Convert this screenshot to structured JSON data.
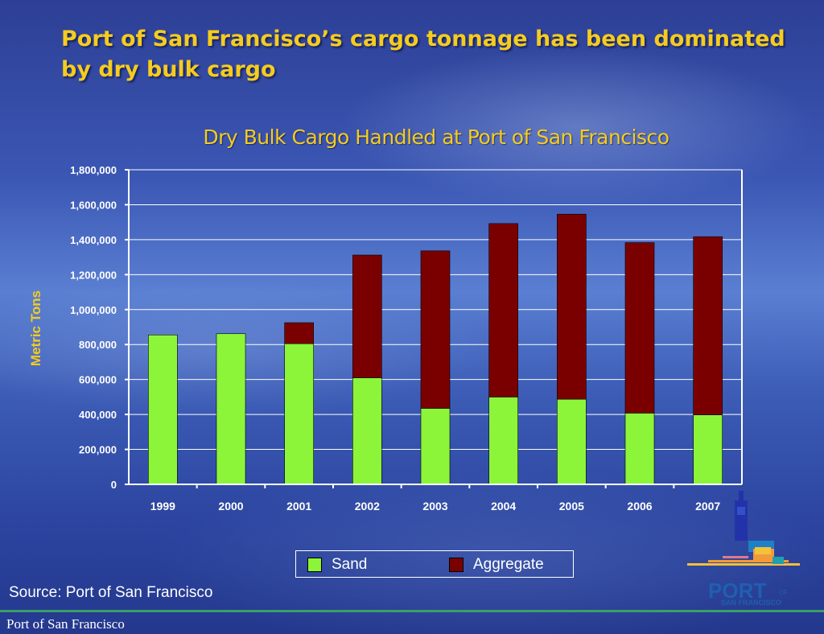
{
  "slide": {
    "title": "Port of San Francisco’s cargo tonnage has been dominated by dry bulk cargo",
    "source": "Source: Port of San Francisco",
    "footer": "Port of San Francisco"
  },
  "logo": {
    "text_main": "PORT",
    "text_of": "OF",
    "text_sub": "SAN FRANCISCO"
  },
  "colors": {
    "sand": "#8cf53a",
    "aggregate": "#7a0000",
    "title": "#f5cc1e",
    "axis_label": "#f5cc1e"
  },
  "chart_data": {
    "type": "bar",
    "stacked": true,
    "title": "Dry Bulk Cargo Handled at Port of San Francisco",
    "ylabel": "Metric Tons",
    "xlabel": "",
    "categories": [
      "1999",
      "2000",
      "2001",
      "2002",
      "2003",
      "2004",
      "2005",
      "2006",
      "2007"
    ],
    "series": [
      {
        "name": "Sand",
        "values": [
          855000,
          862000,
          805000,
          610000,
          435000,
          500000,
          487000,
          408000,
          398000
        ]
      },
      {
        "name": "Aggregate",
        "values": [
          0,
          0,
          120000,
          702000,
          901000,
          992000,
          1059000,
          975000,
          1019000
        ]
      }
    ],
    "ylim": [
      0,
      1800000
    ],
    "yticks": [
      "0",
      "200,000",
      "400,000",
      "600,000",
      "800,000",
      "1,000,000",
      "1,200,000",
      "1,400,000",
      "1,600,000",
      "1,800,000"
    ],
    "grid": true,
    "legend": "bottom"
  }
}
